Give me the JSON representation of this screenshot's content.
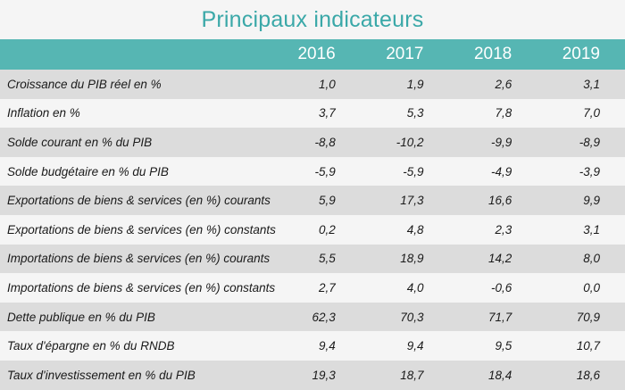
{
  "title": "Principaux indicateurs",
  "columns": [
    "2016",
    "2017",
    "2018",
    "2019"
  ],
  "rows": [
    {
      "label": "Croissance du PIB réel en %",
      "values": [
        "1,0",
        "1,9",
        "2,6",
        "3,1"
      ]
    },
    {
      "label": "Inflation en %",
      "values": [
        "3,7",
        "5,3",
        "7,8",
        "7,0"
      ]
    },
    {
      "label": "Solde courant en % du PIB",
      "values": [
        "-8,8",
        "-10,2",
        "-9,9",
        "-8,9"
      ]
    },
    {
      "label": "Solde budgétaire en % du PIB",
      "values": [
        "-5,9",
        "-5,9",
        "-4,9",
        "-3,9"
      ]
    },
    {
      "label": "Exportations de biens & services (en %) courants",
      "values": [
        "5,9",
        "17,3",
        "16,6",
        "9,9"
      ]
    },
    {
      "label": "Exportations de biens & services (en %) constants",
      "values": [
        "0,2",
        "4,8",
        "2,3",
        "3,1"
      ]
    },
    {
      "label": "Importations de biens & services (en %) courants",
      "values": [
        "5,5",
        "18,9",
        "14,2",
        "8,0"
      ]
    },
    {
      "label": "Importations de biens & services (en %) constants",
      "values": [
        "2,7",
        "4,0",
        "-0,6",
        "0,0"
      ]
    },
    {
      "label": "Dette publique en % du PIB",
      "values": [
        "62,3",
        "70,3",
        "71,7",
        "70,9"
      ]
    },
    {
      "label": "Taux d'épargne en % du RNDB",
      "values": [
        "9,4",
        "9,4",
        "9,5",
        "10,7"
      ]
    },
    {
      "label": "Taux d'investissement en % du PIB",
      "values": [
        "19,3",
        "18,7",
        "18,4",
        "18,6"
      ]
    }
  ],
  "colors": {
    "title": "#3aa8a8",
    "header_bg": "#56b6b3",
    "row_odd": "#dcdcdc",
    "row_even": "#f5f5f5"
  }
}
